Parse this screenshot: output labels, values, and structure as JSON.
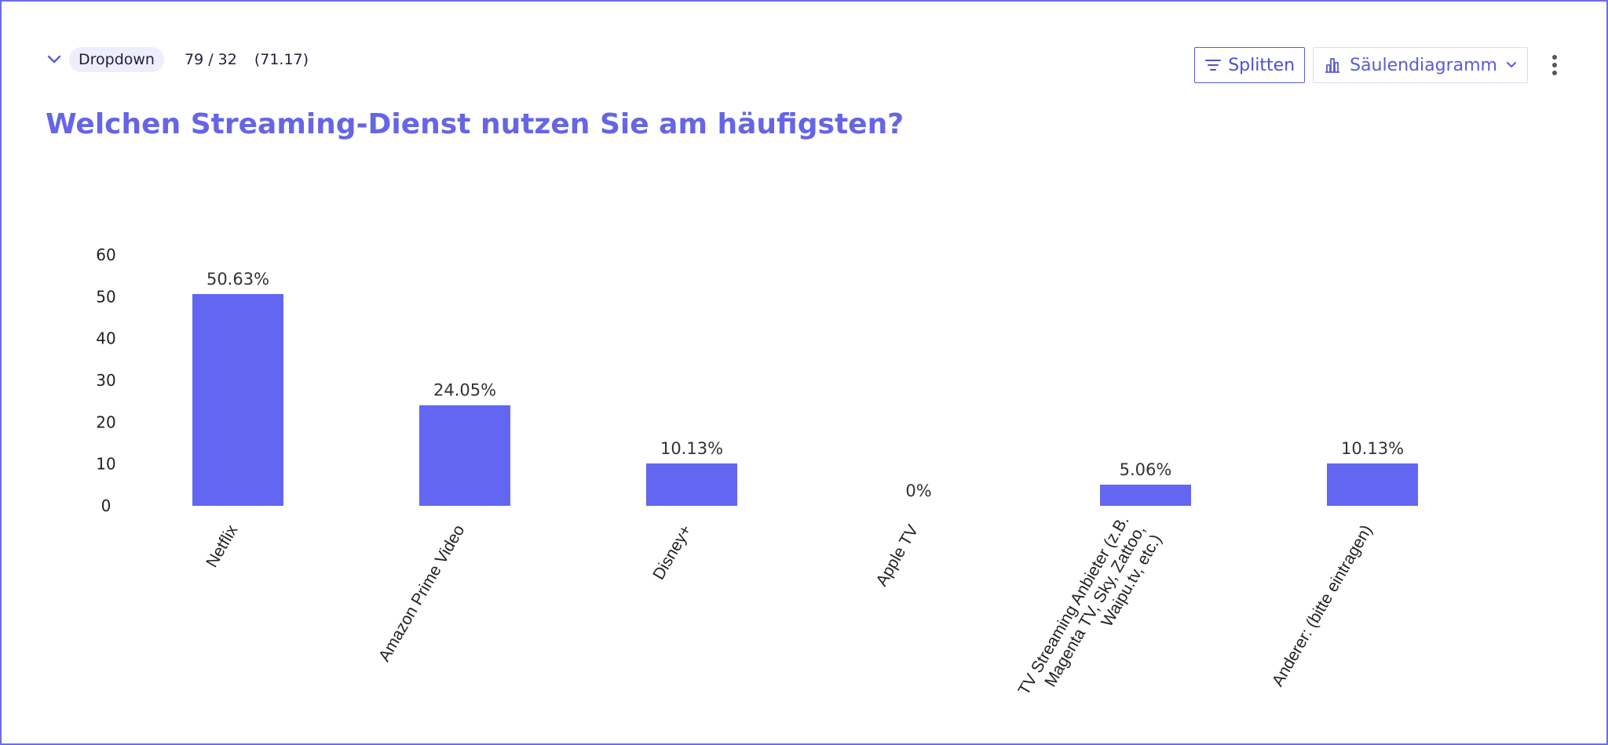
{
  "header": {
    "dropdown_label": "Dropdown",
    "count": "79 / 32",
    "score": "(71.17)"
  },
  "toolbar": {
    "split_label": "Splitten",
    "chart_type_label": "Säulendiagramm"
  },
  "question": {
    "title": "Welchen Streaming-Dienst nutzen Sie am häufigsten?"
  },
  "icons": {
    "collapse": "chevron-down-icon",
    "split": "filter-lines-icon",
    "chart_type": "bar-chart-icon",
    "chart_type_caret": "chevron-down-icon",
    "more": "more-vertical-icon"
  },
  "colors": {
    "accent": "#6366f1",
    "title": "#6565e6",
    "border": "#6b6bef"
  },
  "chart_data": {
    "type": "bar",
    "categories": [
      [
        "Netflix"
      ],
      [
        "Amazon Prime Video"
      ],
      [
        "Disney+"
      ],
      [
        "Apple TV"
      ],
      [
        "TV Streaming Anbieter (z.B.",
        "Magenta TV, Sky, Zattoo,",
        "Waipu.tv, etc.)"
      ],
      [
        "Anderer: (bitte eintragen)"
      ]
    ],
    "values": [
      50.63,
      24.05,
      10.13,
      0,
      5.06,
      10.13
    ],
    "data_labels": [
      "50.63%",
      "24.05%",
      "10.13%",
      "0%",
      "5.06%",
      "10.13%"
    ],
    "y_ticks": [
      0,
      10,
      20,
      30,
      40,
      50,
      60
    ],
    "ylim": [
      0,
      60
    ],
    "color": "#6366f1",
    "grid": false,
    "legend": "none"
  }
}
